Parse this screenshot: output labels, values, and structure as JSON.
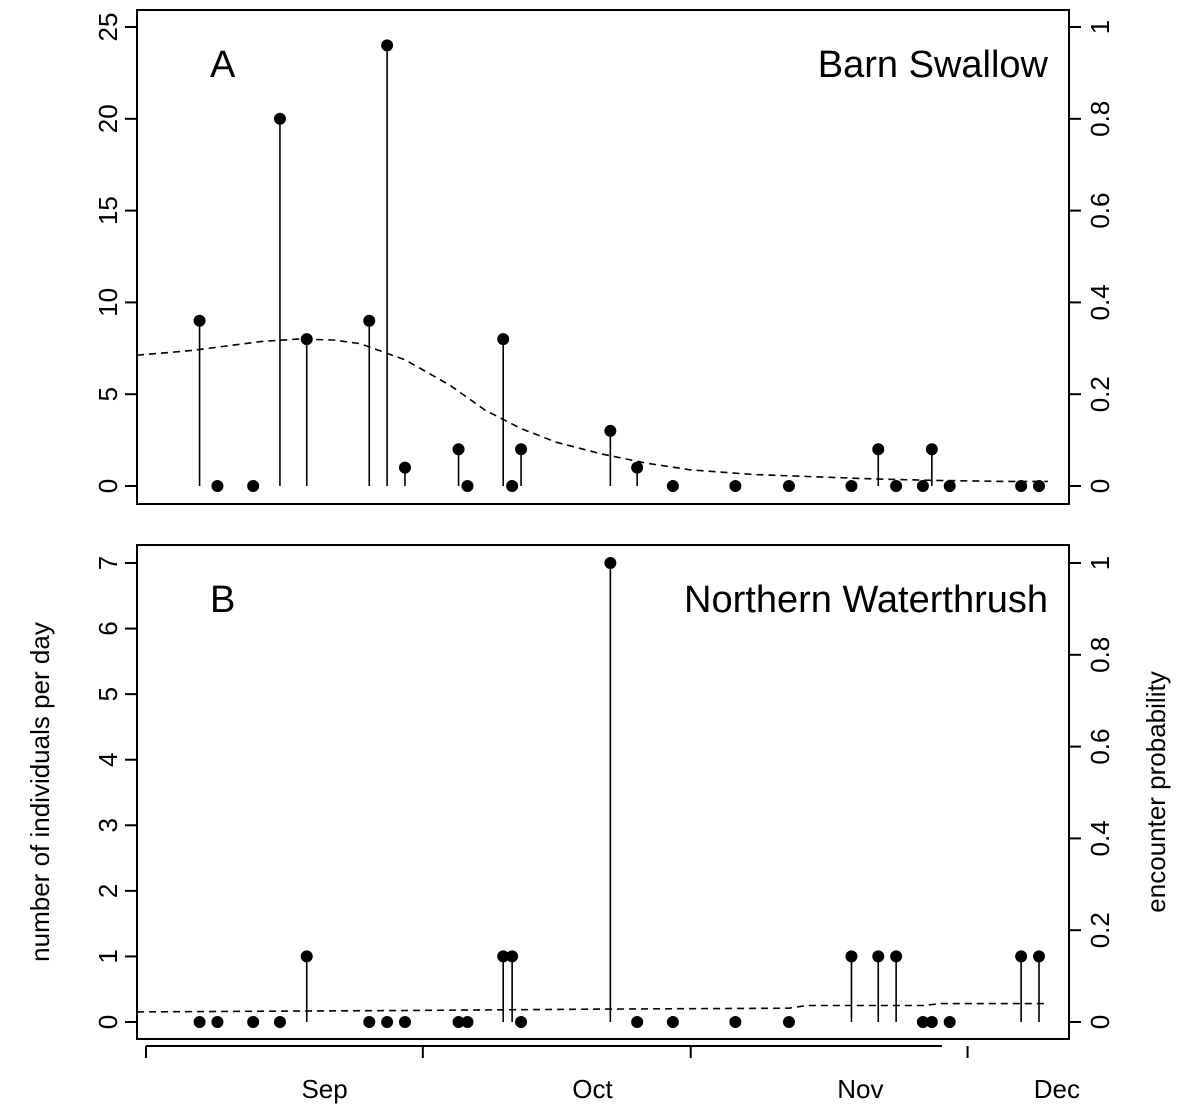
{
  "chart_data": [
    {
      "type": "scatter",
      "panel_label": "A",
      "title": "Barn Swallow",
      "ylabel": "",
      "y2label": "",
      "ylim": [
        0,
        25
      ],
      "yticks": [
        0,
        5,
        10,
        15,
        20,
        25
      ],
      "y2lim": [
        0,
        1
      ],
      "y2ticks": [
        "0",
        "0.2",
        "0.4",
        "0.6",
        "0.8",
        "1"
      ],
      "xlim": [
        "08-26",
        "12-10"
      ],
      "series": [
        {
          "style": "points with vertical lines",
          "x": [
            "09-02",
            "09-04",
            "09-08",
            "09-11",
            "09-14",
            "09-21",
            "09-23",
            "09-25",
            "09-31",
            "10-02",
            "10-06",
            "10-07",
            "10-08",
            "10-18",
            "10-21",
            "10-25",
            "11-01",
            "11-07",
            "11-14",
            "11-17",
            "11-19",
            "11-22",
            "11-23",
            "11-25",
            "12-03",
            "12-05"
          ],
          "values": [
            9,
            0,
            0,
            20,
            8,
            9,
            24,
            1,
            2,
            0,
            8,
            0,
            2,
            3,
            1,
            0,
            0,
            0,
            0,
            2,
            0,
            0,
            2,
            0,
            0,
            0
          ]
        },
        {
          "style": "dashed line",
          "axis": "right",
          "x": [
            "08-26",
            "09-01",
            "09-05",
            "09-09",
            "09-13",
            "09-17",
            "09-20",
            "09-25",
            "09-30",
            "10-04",
            "10-08",
            "10-12",
            "10-17",
            "10-22",
            "10-27",
            "11-03",
            "11-10",
            "11-17",
            "11-24",
            "12-01",
            "12-06"
          ],
          "values": [
            0.285,
            0.295,
            0.305,
            0.315,
            0.32,
            0.318,
            0.31,
            0.275,
            0.22,
            0.165,
            0.125,
            0.095,
            0.07,
            0.05,
            0.035,
            0.025,
            0.02,
            0.015,
            0.012,
            0.01,
            0.01
          ]
        }
      ]
    },
    {
      "type": "scatter",
      "panel_label": "B",
      "title": "Northern Waterthrush",
      "ylabel": "number of individuals per day",
      "y2label": "encounter probability",
      "ylim": [
        0,
        7
      ],
      "yticks": [
        0,
        1,
        2,
        3,
        4,
        5,
        6,
        7
      ],
      "y2lim": [
        0,
        1
      ],
      "y2ticks": [
        "0",
        "0.2",
        "0.4",
        "0.6",
        "0.8",
        "1"
      ],
      "xlim": [
        "08-26",
        "12-10"
      ],
      "xticks": [
        "08-27",
        "09-27",
        "10-27",
        "11-27"
      ],
      "xtick_labels": [
        "Sep",
        "Oct",
        "Nov",
        "Dec"
      ],
      "series": [
        {
          "style": "points with vertical lines",
          "x": [
            "09-02",
            "09-04",
            "09-08",
            "09-11",
            "09-14",
            "09-21",
            "09-23",
            "09-25",
            "09-31",
            "10-02",
            "10-06",
            "10-07",
            "10-08",
            "10-18",
            "10-21",
            "10-25",
            "11-01",
            "11-07",
            "11-14",
            "11-17",
            "11-19",
            "11-22",
            "11-23",
            "11-25",
            "12-03",
            "12-05"
          ],
          "values": [
            0,
            0,
            0,
            0,
            1,
            0,
            0,
            0,
            0,
            0,
            1,
            1,
            0,
            7,
            0,
            0,
            0,
            0,
            1,
            1,
            1,
            0,
            0,
            0,
            1,
            1
          ]
        },
        {
          "style": "dashed line",
          "axis": "right",
          "x": [
            "08-26",
            "09-25",
            "10-17",
            "11-07",
            "11-09",
            "11-22",
            "11-24",
            "12-06"
          ],
          "values": [
            0.022,
            0.025,
            0.028,
            0.03,
            0.036,
            0.036,
            0.04,
            0.04
          ]
        }
      ]
    }
  ]
}
